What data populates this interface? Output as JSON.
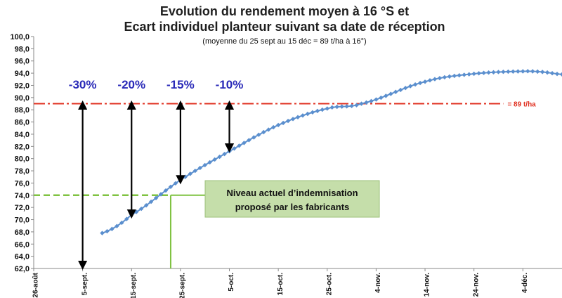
{
  "chart_data": {
    "type": "line",
    "title": "Evolution du rendement  moyen à 16 °S  et",
    "title_line2": "Ecart individuel planteur suivant sa date de réception",
    "subtitle": "(moyenne du 25 sept au 15 déc = 89 t/ha à 16°)",
    "xlabel": "",
    "ylabel": "",
    "ylim": [
      62,
      100
    ],
    "y_ticks": [
      "62,0",
      "64,0",
      "66,0",
      "68,0",
      "70,0",
      "72,0",
      "74,0",
      "76,0",
      "78,0",
      "80,0",
      "82,0",
      "84,0",
      "86,0",
      "88,0",
      "90,0",
      "92,0",
      "94,0",
      "96,0",
      "98,0",
      "100,0"
    ],
    "x_ticks": [
      "26-août",
      "5-sept.",
      "15-sept.",
      "25-sept.",
      "5-oct.",
      "15-oct.",
      "25-oct.",
      "4-nov.",
      "14-nov.",
      "24-nov.",
      "4-déc."
    ],
    "x_range_days": [
      0,
      108
    ],
    "grid": false,
    "series": [
      {
        "color": "#5b8fce",
        "marker": "diamond",
        "x_days_since_26_aout": [
          14,
          20,
          30,
          40,
          50,
          60,
          67,
          80,
          90,
          100,
          104,
          108
        ],
        "values": [
          67.8,
          70.8,
          76.5,
          81.2,
          85.5,
          88.2,
          89.0,
          92.6,
          93.9,
          94.3,
          94.2,
          93.8
        ]
      }
    ],
    "reference_line": {
      "value": 89,
      "label": "= 89 t/ha",
      "color": "#e03020",
      "style": "dash-dot"
    },
    "indemnity_line": {
      "value": 74,
      "color": "#7fc241",
      "style": "dashed",
      "x_end_days": 28
    },
    "indemnity_vertical_x_days": 28,
    "arrows": [
      {
        "label": "-30%",
        "x_days": 10,
        "from": 89,
        "to": 62.3
      },
      {
        "label": "-20%",
        "x_days": 20,
        "from": 89,
        "to": 70.7
      },
      {
        "label": "-15%",
        "x_days": 30,
        "from": 89,
        "to": 76.3
      },
      {
        "label": "-10%",
        "x_days": 40,
        "from": 89,
        "to": 81.5
      }
    ],
    "annotation": {
      "line1": "Niveau actuel d’indemnisation",
      "line2": "proposé par les fabricants",
      "background": "#c5deaa"
    }
  }
}
